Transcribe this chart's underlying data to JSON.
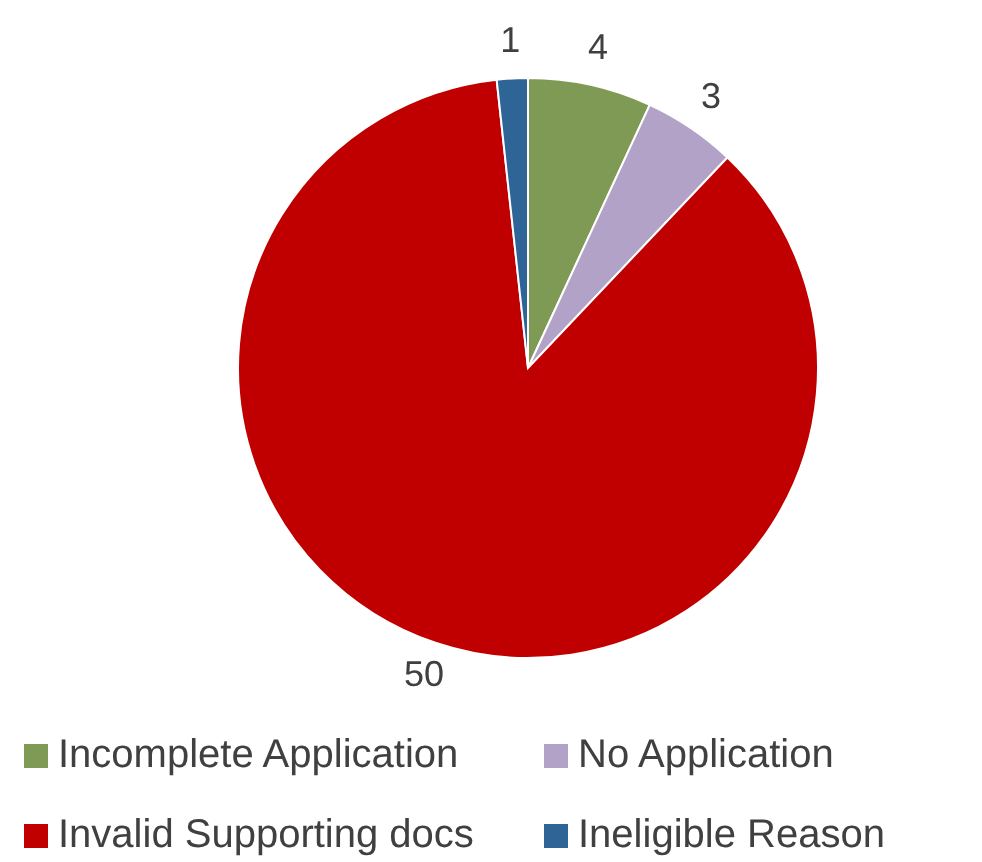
{
  "chart_data": {
    "type": "pie",
    "categories": [
      "Incomplete Application",
      "No Application",
      "Invalid Supporting docs",
      "Ineligible Reason"
    ],
    "values": [
      4,
      3,
      50,
      1
    ],
    "colors": [
      "#7f9a54",
      "#b3a2c7",
      "#c00000",
      "#2e6496"
    ],
    "data_labels": true,
    "legend": "bottom"
  }
}
